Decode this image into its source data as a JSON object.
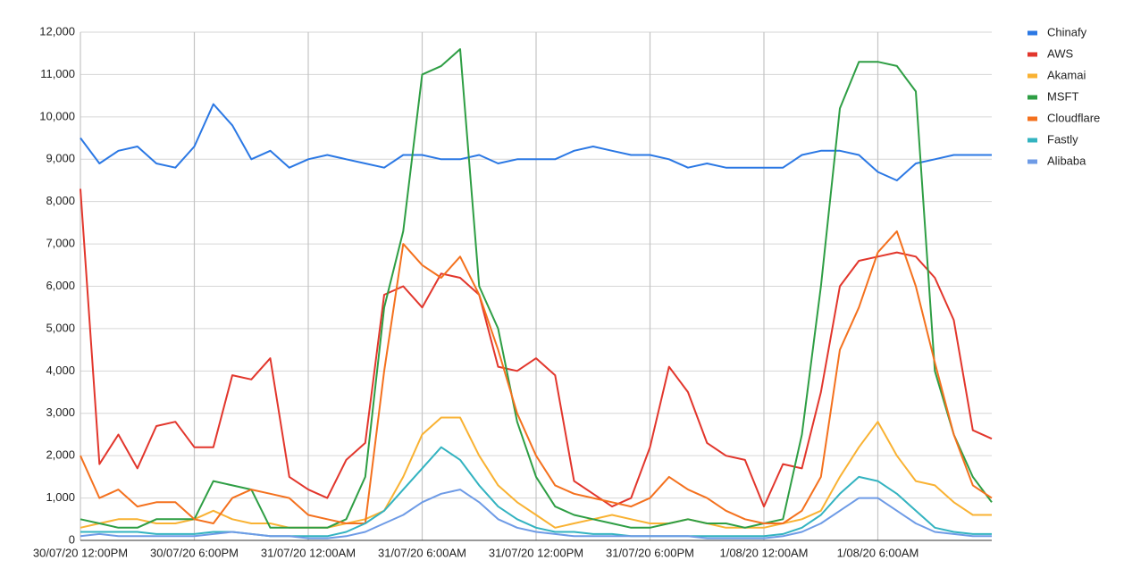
{
  "chart_data": {
    "type": "line",
    "x": [
      0,
      1,
      2,
      3,
      4,
      5,
      6,
      7,
      8,
      9,
      10,
      11,
      12,
      13,
      14,
      15,
      16,
      17,
      18,
      19,
      20,
      21,
      22,
      23,
      24,
      25,
      26,
      27,
      28,
      29,
      30,
      31,
      32,
      33,
      34,
      35,
      36,
      37,
      38,
      39,
      40,
      41,
      42,
      43,
      44,
      45,
      46,
      47,
      48
    ],
    "xlim": [
      0,
      48
    ],
    "xticks": [
      {
        "value": 0,
        "label": "30/07/20 12:00PM"
      },
      {
        "value": 6,
        "label": "30/07/20 6:00PM"
      },
      {
        "value": 12,
        "label": "31/07/20 12:00AM"
      },
      {
        "value": 18,
        "label": "31/07/20 6:00AM"
      },
      {
        "value": 24,
        "label": "31/07/20 12:00PM"
      },
      {
        "value": 30,
        "label": "31/07/20 6:00PM"
      },
      {
        "value": 36,
        "label": "1/08/20 12:00AM"
      },
      {
        "value": 42,
        "label": "1/08/20 6:00AM"
      }
    ],
    "ylim": [
      0,
      12000
    ],
    "yticks": [
      0,
      {
        "value": 1000,
        "label": "1,000"
      },
      {
        "value": 2000,
        "label": "2,000"
      },
      {
        "value": 3000,
        "label": "3,000"
      },
      {
        "value": 4000,
        "label": "4,000"
      },
      {
        "value": 5000,
        "label": "5,000"
      },
      {
        "value": 6000,
        "label": "6,000"
      },
      {
        "value": 7000,
        "label": "7,000"
      },
      {
        "value": 8000,
        "label": "8,000"
      },
      {
        "value": 9000,
        "label": "9,000"
      },
      {
        "value": 10000,
        "label": "10,000"
      },
      {
        "value": 11000,
        "label": "11,000"
      },
      {
        "value": 12000,
        "label": "12,000"
      }
    ],
    "grid": true,
    "legend": "right",
    "series": [
      {
        "name": "Chinafy",
        "color": "#2b78e4",
        "values": [
          9500,
          8900,
          9200,
          9300,
          8900,
          8800,
          9300,
          10300,
          9800,
          9000,
          9200,
          8800,
          9000,
          9100,
          9000,
          8900,
          8800,
          9100,
          9100,
          9000,
          9000,
          9100,
          8900,
          9000,
          9000,
          9000,
          9200,
          9300,
          9200,
          9100,
          9100,
          9000,
          8800,
          8900,
          8800,
          8800,
          8800,
          8800,
          9100,
          9200,
          9200,
          9100,
          8700,
          8500,
          8900,
          9000,
          9100,
          9100,
          9100
        ]
      },
      {
        "name": "AWS",
        "color": "#e2362c",
        "values": [
          8300,
          1800,
          2500,
          1700,
          2700,
          2800,
          2200,
          2200,
          3900,
          3800,
          4300,
          1500,
          1200,
          1000,
          1900,
          2300,
          5800,
          6000,
          5500,
          6300,
          6200,
          5800,
          4100,
          4000,
          4300,
          3900,
          1400,
          1100,
          800,
          1000,
          2200,
          4100,
          3500,
          2300,
          2000,
          1900,
          800,
          1800,
          1700,
          3500,
          6000,
          6600,
          6700,
          6800,
          6700,
          6200,
          5200,
          2600,
          2400
        ]
      },
      {
        "name": "Akamai",
        "color": "#f9b233",
        "values": [
          300,
          400,
          500,
          500,
          400,
          400,
          500,
          700,
          500,
          400,
          400,
          300,
          300,
          300,
          400,
          500,
          700,
          1500,
          2500,
          2900,
          2900,
          2000,
          1300,
          900,
          600,
          300,
          400,
          500,
          600,
          500,
          400,
          400,
          500,
          400,
          300,
          300,
          300,
          400,
          500,
          700,
          1500,
          2200,
          2800,
          2000,
          1400,
          1300,
          900,
          600,
          600
        ]
      },
      {
        "name": "MSFT",
        "color": "#2e9e44",
        "values": [
          500,
          400,
          300,
          300,
          500,
          500,
          500,
          1400,
          1300,
          1200,
          300,
          300,
          300,
          300,
          500,
          1500,
          5500,
          7300,
          11000,
          11200,
          11600,
          6000,
          5000,
          2800,
          1500,
          800,
          600,
          500,
          400,
          300,
          300,
          400,
          500,
          400,
          400,
          300,
          400,
          500,
          2500,
          6000,
          10200,
          11300,
          11300,
          11200,
          10600,
          4000,
          2500,
          1500,
          900
        ]
      },
      {
        "name": "Cloudflare",
        "color": "#f4711e",
        "values": [
          2000,
          1000,
          1200,
          800,
          900,
          900,
          500,
          400,
          1000,
          1200,
          1100,
          1000,
          600,
          500,
          400,
          400,
          4000,
          7000,
          6500,
          6200,
          6700,
          5800,
          4500,
          3000,
          2000,
          1300,
          1100,
          1000,
          900,
          800,
          1000,
          1500,
          1200,
          1000,
          700,
          500,
          400,
          400,
          700,
          1500,
          4500,
          5500,
          6800,
          7300,
          6000,
          4200,
          2500,
          1300,
          1000
        ]
      },
      {
        "name": "Fastly",
        "color": "#33b3c0",
        "values": [
          200,
          200,
          200,
          200,
          150,
          150,
          150,
          200,
          200,
          150,
          100,
          100,
          100,
          100,
          200,
          400,
          700,
          1200,
          1700,
          2200,
          1900,
          1300,
          800,
          500,
          300,
          200,
          200,
          150,
          150,
          100,
          100,
          100,
          100,
          100,
          100,
          100,
          100,
          150,
          300,
          600,
          1100,
          1500,
          1400,
          1100,
          700,
          300,
          200,
          150,
          150
        ]
      },
      {
        "name": "Alibaba",
        "color": "#6e9be6",
        "values": [
          100,
          150,
          100,
          100,
          100,
          100,
          100,
          150,
          200,
          150,
          100,
          100,
          50,
          50,
          100,
          200,
          400,
          600,
          900,
          1100,
          1200,
          900,
          500,
          300,
          200,
          150,
          100,
          100,
          100,
          100,
          100,
          100,
          100,
          50,
          50,
          50,
          50,
          100,
          200,
          400,
          700,
          1000,
          1000,
          700,
          400,
          200,
          150,
          100,
          100
        ]
      }
    ]
  }
}
